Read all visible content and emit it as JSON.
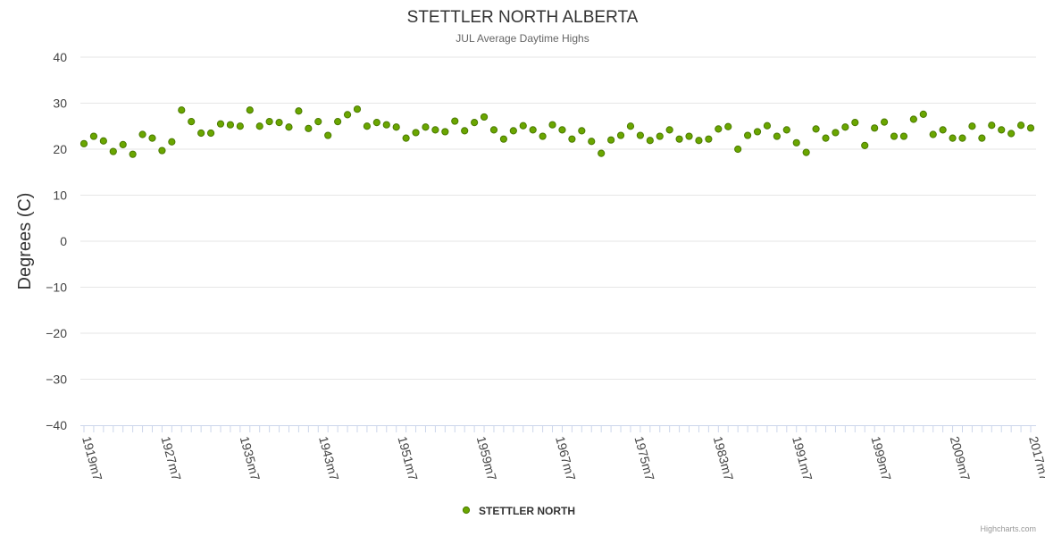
{
  "chart_data": {
    "type": "scatter",
    "title": "STETTLER NORTH ALBERTA",
    "subtitle": "JUL Average Daytime Highs",
    "xlabel": "",
    "ylabel": "Degrees (C)",
    "ylim": [
      -40,
      40
    ],
    "yticks": [
      40,
      30,
      20,
      10,
      0,
      -10,
      -20,
      -30,
      -40
    ],
    "ytick_labels": [
      "40",
      "30",
      "20",
      "10",
      "0",
      "−10",
      "−20",
      "−30",
      "−40"
    ],
    "xtick_labels": [
      "1919m7",
      "1927m7",
      "1935m7",
      "1943m7",
      "1951m7",
      "1959m7",
      "1967m7",
      "1975m7",
      "1983m7",
      "1991m7",
      "1999m7",
      "2009m7",
      "2017m7"
    ],
    "grid": true,
    "legend": "bottom-center",
    "series": [
      {
        "name": "STETTLER NORTH",
        "color": "#6aa600",
        "stroke": "#4a7a00",
        "values": [
          21.2,
          22.8,
          21.8,
          19.5,
          21.0,
          18.9,
          23.2,
          22.4,
          19.7,
          21.6,
          28.5,
          26.0,
          23.5,
          23.5,
          25.5,
          25.3,
          25.0,
          28.5,
          25.0,
          26.0,
          25.8,
          24.8,
          28.3,
          24.5,
          26.0,
          23.0,
          26.0,
          27.5,
          28.7,
          25.0,
          25.8,
          25.3,
          24.8,
          22.4,
          23.6,
          24.8,
          24.2,
          23.8,
          26.1,
          24.0,
          25.8,
          27.0,
          24.2,
          22.2,
          24.0,
          25.1,
          24.2,
          22.8,
          25.3,
          24.2,
          22.2,
          24.0,
          21.7,
          19.1,
          22.0,
          23.0,
          25.0,
          23.0,
          21.9,
          22.8,
          24.2,
          22.2,
          22.8,
          21.9,
          22.2,
          24.4,
          24.9,
          20.0,
          23.0,
          23.8,
          25.1,
          22.8,
          24.2,
          21.4,
          19.3,
          24.4,
          22.4,
          23.6,
          24.8,
          25.8,
          20.8,
          24.6,
          25.9,
          22.8,
          22.8,
          26.5,
          27.6,
          23.2,
          24.2,
          22.4,
          22.4,
          25.0,
          22.4,
          25.2,
          24.2,
          23.4,
          25.2,
          24.6
        ]
      }
    ]
  },
  "credits": "Highcharts.com"
}
